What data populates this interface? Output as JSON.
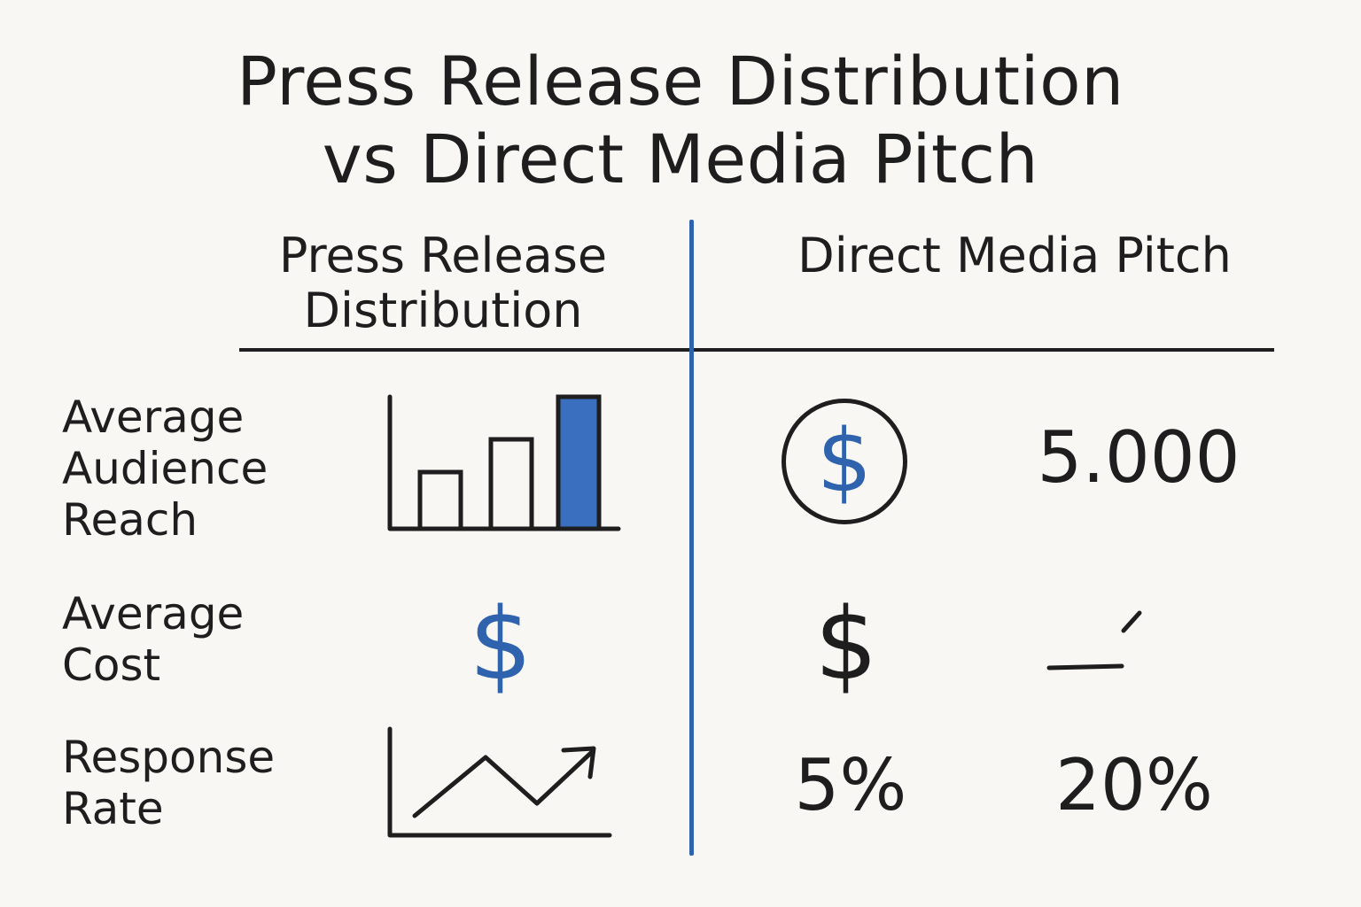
{
  "title": {
    "line1": "Press Release Distribution",
    "line2": "vs Direct Media Pitch"
  },
  "columns": {
    "left": [
      "Press Release",
      "Distribution"
    ],
    "right": "Direct Media Pitch"
  },
  "rows": {
    "reach": {
      "label": [
        "Average",
        "Audience",
        "Reach"
      ],
      "direct_value": "5.000"
    },
    "cost": {
      "label": [
        "Average",
        "Cost"
      ],
      "press_symbol": "$",
      "direct_symbol": "$"
    },
    "response": {
      "label": [
        "Response",
        "Rate"
      ],
      "press_value": "5%",
      "direct_value": "20%"
    }
  },
  "icons": {
    "bar_chart": "bar-chart-icon",
    "dollar_circle": "dollar-circle-icon",
    "trend_arrow": "trend-arrow-icon",
    "check_mark": "check-mark-icon"
  },
  "colors": {
    "accent": "#2f63ad",
    "ink": "#1e1e1e",
    "background": "#f8f7f3"
  }
}
